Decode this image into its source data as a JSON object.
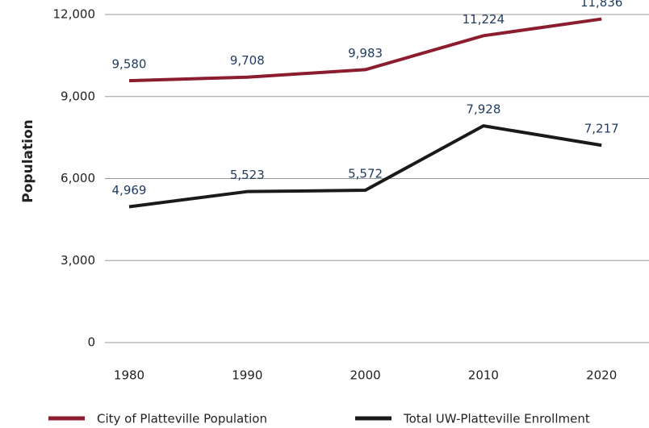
{
  "chart_data": {
    "type": "line",
    "y_label": "Population",
    "categories": [
      "1980",
      "1990",
      "2000",
      "2010",
      "2020"
    ],
    "series": [
      {
        "name": "City of Platteville Population",
        "color": "#8c1d2e",
        "values": [
          9580,
          9708,
          9983,
          11224,
          11836
        ],
        "value_labels": [
          "9,580",
          "9,708",
          "9,983",
          "11,224",
          "11,836"
        ]
      },
      {
        "name": "Total UW-Platteville Enrollment",
        "color": "#1a1a1a",
        "values": [
          4969,
          5523,
          5572,
          7928,
          7217
        ],
        "value_labels": [
          "4,969",
          "5,523",
          "5,572",
          "7,928",
          "7,217"
        ]
      }
    ],
    "ylim": [
      0,
      12000
    ],
    "yticks": [
      0,
      {
        "value": 3000,
        "label": "3,000"
      },
      {
        "value": 6000,
        "label": "6,000"
      },
      {
        "value": 9000,
        "label": "9,000"
      },
      {
        "value": 12000,
        "label": "12,000"
      }
    ],
    "grid": true,
    "legend": "bottom"
  }
}
